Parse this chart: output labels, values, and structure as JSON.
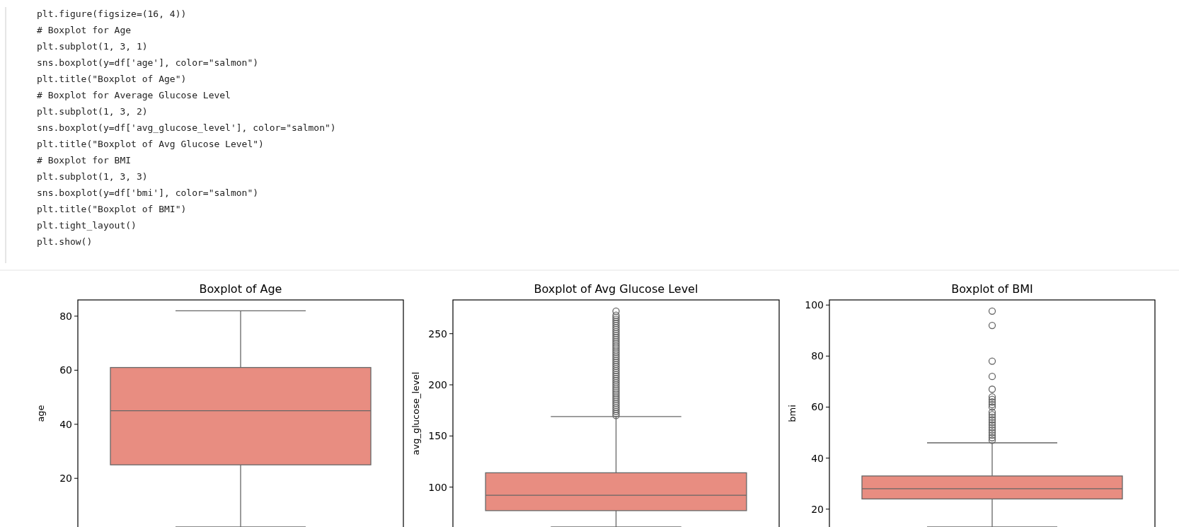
{
  "chart_data": [
    {
      "type": "other",
      "annotations": [
        "plt.figure(figsize=(16, 4))",
        "# Boxplot for Age",
        "plt.subplot(1, 3, 1)",
        "sns.boxplot(y=df['age'], color=\"salmon\")",
        "plt.title(\"Boxplot of Age\")",
        "# Boxplot for Average Glucose Level",
        "plt.subplot(1, 3, 2)",
        "sns.boxplot(y=df['avg_glucose_level'], color=\"salmon\")",
        "plt.title(\"Boxplot of Avg Glucose Level\")",
        "# Boxplot for BMI",
        "plt.subplot(1, 3, 3)",
        "sns.boxplot(y=df['bmi'], color=\"salmon\")",
        "plt.title(\"Boxplot of BMI\")",
        "plt.tight_layout()",
        "plt.show()"
      ]
    },
    {
      "type": "box",
      "title": "Boxplot of Age",
      "ylabel": "age",
      "categories": [
        null
      ],
      "ylim": [
        2,
        86
      ],
      "yticks": [
        20,
        40,
        60,
        80
      ],
      "series": [
        {
          "color": "#e88d81",
          "boxes": [
            {
              "low": 2,
              "q1": 25,
              "median": 45,
              "q3": 61,
              "high": 82
            }
          ]
        }
      ]
    },
    {
      "type": "box",
      "title": "Boxplot of Avg Glucose Level",
      "ylabel": "avg_glucose_level",
      "categories": [
        null
      ],
      "ylim": [
        61,
        283
      ],
      "yticks": [
        100,
        150,
        200,
        250
      ],
      "series": [
        {
          "color": "#e88d81",
          "boxes": [
            {
              "low": 61,
              "q1": 77,
              "median": 92,
              "q3": 114,
              "high": 169,
              "outliers": [
                170,
                172,
                174,
                176,
                178,
                180,
                182,
                184,
                186,
                188,
                190,
                192,
                194,
                196,
                198,
                200,
                202,
                204,
                206,
                208,
                210,
                212,
                214,
                216,
                218,
                220,
                222,
                224,
                226,
                228,
                230,
                232,
                234,
                236,
                238,
                240,
                242,
                244,
                246,
                248,
                250,
                252,
                254,
                256,
                258,
                260,
                262,
                264,
                266,
                268,
                272
              ]
            }
          ]
        }
      ]
    },
    {
      "type": "box",
      "title": "Boxplot of BMI",
      "ylabel": "bmi",
      "categories": [
        null
      ],
      "ylim": [
        13,
        102
      ],
      "yticks": [
        20,
        40,
        60,
        80,
        100
      ],
      "series": [
        {
          "color": "#e88d81",
          "boxes": [
            {
              "low": 13,
              "q1": 24,
              "median": 28,
              "q3": 33,
              "high": 46,
              "outliers": [
                47,
                48,
                49,
                50,
                51,
                52,
                53,
                54,
                55,
                56,
                57,
                58,
                60,
                61,
                62,
                63,
                64,
                67,
                72,
                78,
                92,
                97.6
              ]
            }
          ]
        }
      ]
    }
  ]
}
